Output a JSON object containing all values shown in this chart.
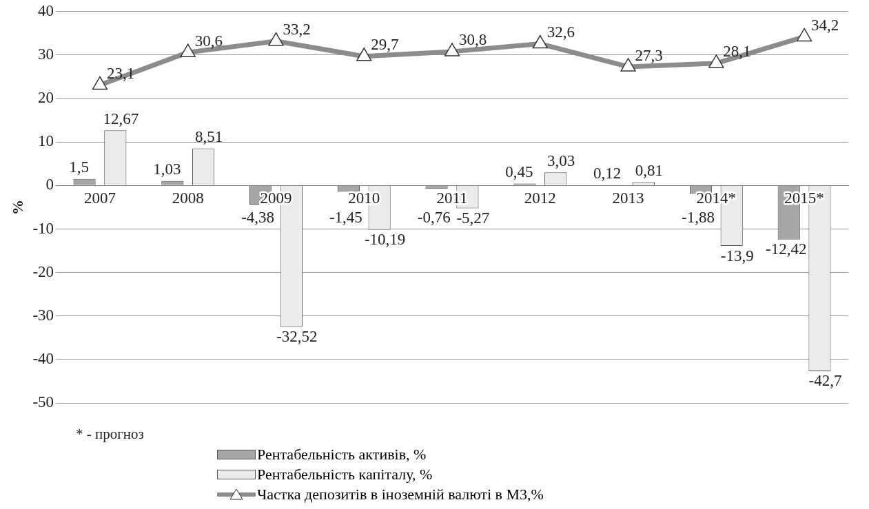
{
  "chart_data": {
    "type": "bar",
    "ylabel": "%",
    "categories": [
      "2007",
      "2008",
      "2009",
      "2010",
      "2011",
      "2012",
      "2013",
      "2014*",
      "2015*"
    ],
    "series": [
      {
        "name": "Рентабельність активів, %",
        "color": "#a6a6a6",
        "values": [
          1.5,
          1.03,
          -4.38,
          -1.45,
          -0.76,
          0.45,
          0.12,
          -1.88,
          -12.42
        ],
        "value_labels": [
          "1,5",
          "1,03",
          "-4,38",
          "-1,45",
          "-0,76",
          "0,45",
          "0,12",
          "-1,88",
          "-12,42"
        ]
      },
      {
        "name": "Рентабельність капіталу, %",
        "color": "#ebebeb",
        "values": [
          12.67,
          8.51,
          -32.52,
          -10.19,
          -5.27,
          3.03,
          0.81,
          -13.9,
          -42.7
        ],
        "value_labels": [
          "12,67",
          "8,51",
          "-32,52",
          "-10,19",
          "-5,27",
          "3,03",
          "0,81",
          "-13,9",
          "-42,7"
        ]
      },
      {
        "name": "Частка депозитів в іноземній валюті в М3,%",
        "type": "line",
        "color": "#8c8c8c",
        "marker": "triangle",
        "values": [
          23.1,
          30.6,
          33.2,
          29.7,
          30.8,
          32.6,
          27.3,
          28.1,
          34.2
        ],
        "value_labels": [
          "23,1",
          "30,6",
          "33,2",
          "29,7",
          "30,8",
          "32,6",
          "27,3",
          "28,1",
          "34,2"
        ]
      }
    ],
    "ylim": [
      -50,
      40
    ],
    "yticks": [
      -50,
      -40,
      -30,
      -20,
      -10,
      0,
      10,
      20,
      30,
      40
    ],
    "grid": "y",
    "legend": "bottom",
    "annotations": [
      "* - прогноз"
    ]
  }
}
